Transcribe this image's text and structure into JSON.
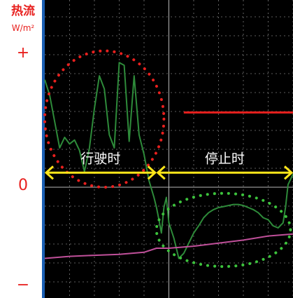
{
  "y_axis": {
    "title": "热流",
    "unit": "W/m²",
    "tick_plus": "+",
    "tick_zero": "0",
    "tick_minus": "−"
  },
  "chart_data": {
    "type": "line",
    "title": "",
    "xlabel": "",
    "ylabel": "热流 W/m²",
    "ylim": [
      -1,
      1
    ],
    "grid": true,
    "background": "#000000",
    "series": [
      {
        "color": "#2e8b3a",
        "x": [
          0,
          2,
          4,
          6,
          8,
          10,
          12,
          14,
          16,
          18,
          20,
          22,
          24,
          26,
          28,
          30,
          32,
          34,
          36,
          38,
          40,
          42,
          44,
          45,
          46,
          47,
          48,
          49,
          50,
          52,
          54,
          56,
          58,
          60,
          62,
          64,
          66,
          68,
          70,
          72,
          74,
          76,
          78,
          80,
          82,
          84,
          86,
          88,
          90,
          92,
          94,
          96,
          97,
          98,
          100
        ],
        "values": [
          0.82,
          0.7,
          0.5,
          0.3,
          0.38,
          0.33,
          0.36,
          0.28,
          0.12,
          0.3,
          0.6,
          0.85,
          0.75,
          0.4,
          0.3,
          0.95,
          0.93,
          0.35,
          0.85,
          0.4,
          0.25,
          0.05,
          -0.1,
          -0.2,
          -0.32,
          -0.45,
          -0.2,
          -0.1,
          -0.35,
          -0.5,
          -0.7,
          -0.65,
          -0.55,
          -0.45,
          -0.38,
          -0.3,
          -0.25,
          -0.22,
          -0.2,
          -0.19,
          -0.18,
          -0.17,
          -0.17,
          -0.18,
          -0.2,
          -0.22,
          -0.25,
          -0.3,
          -0.32,
          -0.38,
          -0.4,
          -0.35,
          -0.2,
          0.02,
          0.1
        ]
      },
      {
        "color": "#c0509a",
        "x": [
          0,
          10,
          20,
          30,
          40,
          45,
          50,
          60,
          70,
          80,
          90,
          100
        ],
        "values": [
          -0.7,
          -0.68,
          -0.67,
          -0.66,
          -0.64,
          -0.6,
          -0.6,
          -0.58,
          -0.55,
          -0.52,
          -0.48,
          -0.46
        ]
      },
      {
        "color": "#e8201e",
        "x": [
          56,
          100
        ],
        "values": [
          0.57,
          0.57
        ]
      }
    ],
    "annotations": [
      {
        "text": "行驶时",
        "x_from": 0,
        "x_to": 45,
        "y": 0.1
      },
      {
        "text": "停止时",
        "x_from": 45,
        "x_to": 100,
        "y": 0.1
      }
    ],
    "highlight_circles": [
      {
        "color": "#e8201e",
        "cx": 24,
        "cy": 0.52,
        "rx": 24,
        "ry": 0.52
      },
      {
        "color": "#3cc23c",
        "cx": 72,
        "cy": -0.42,
        "rx": 27,
        "ry": 0.36
      }
    ]
  }
}
